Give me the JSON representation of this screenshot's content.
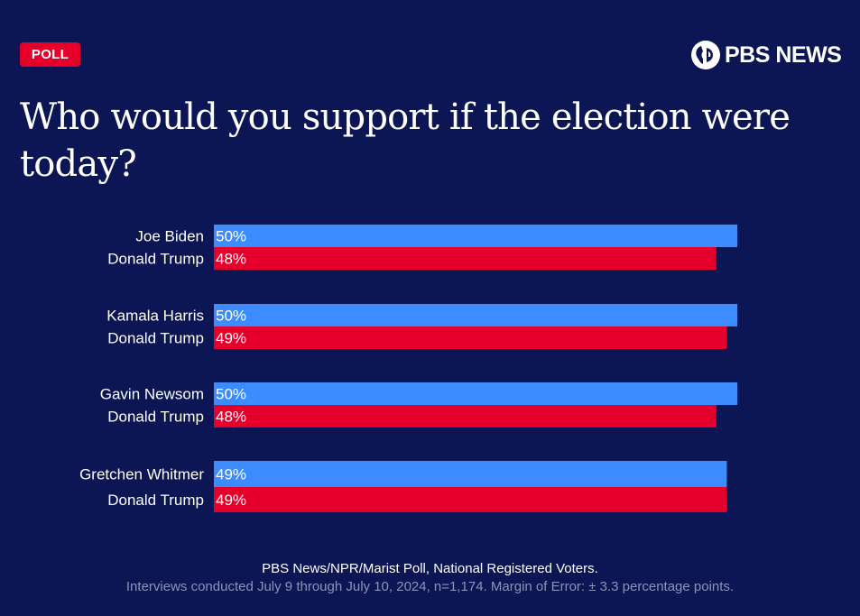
{
  "badge": "POLL",
  "brand": "PBS NEWS",
  "title": "Who would you support if the election were today?",
  "colors": {
    "background": "#0c1654",
    "democrat": "#3c8cff",
    "republican": "#e4002b",
    "badge": "#e4002b"
  },
  "chart_data": {
    "type": "bar",
    "orientation": "horizontal",
    "title": "Who would you support if the election were today?",
    "value_unit": "%",
    "groups": [
      {
        "democrat": {
          "name": "Joe Biden",
          "value": 50
        },
        "republican": {
          "name": "Donald Trump",
          "value": 48
        }
      },
      {
        "democrat": {
          "name": "Kamala Harris",
          "value": 50
        },
        "republican": {
          "name": "Donald Trump",
          "value": 49
        }
      },
      {
        "democrat": {
          "name": "Gavin Newsom",
          "value": 50
        },
        "republican": {
          "name": "Donald Trump",
          "value": 48
        }
      },
      {
        "democrat": {
          "name": "Gretchen Whitmer",
          "value": 49
        },
        "republican": {
          "name": "Donald Trump",
          "value": 49
        }
      }
    ]
  },
  "footer": {
    "source": "PBS News/NPR/Marist Poll, National Registered Voters.",
    "note": "Interviews conducted July 9 through July 10, 2024, n=1,174. Margin of Error: ± 3.3 percentage points."
  }
}
